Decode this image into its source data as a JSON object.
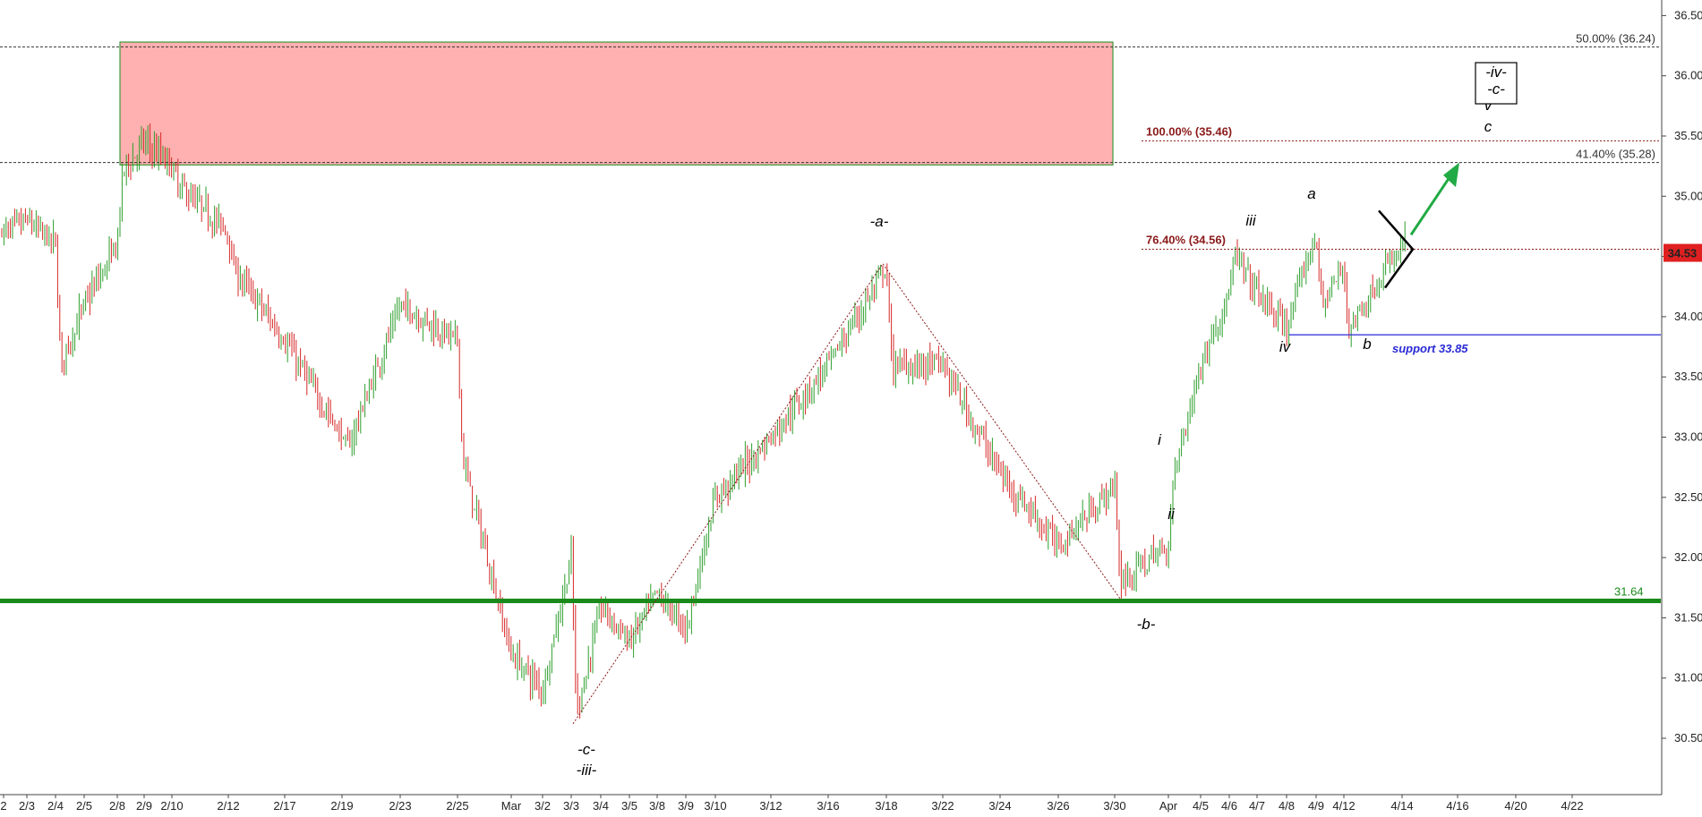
{
  "chart_data": {
    "type": "candlestick",
    "colors": {
      "up": "#2e9e2e",
      "down": "#d62828",
      "resistance_zone_fill": "#ffb0b0",
      "resistance_zone_border": "#3c9a3c",
      "support_line": "#1a8a1a",
      "support_33_85": "#2a2ad6",
      "fib_red": "#8b1a1a",
      "arrow": "#22aa44",
      "price_badge": "#e02020"
    },
    "ylim": [
      30.2,
      36.6
    ],
    "y_ticks": [
      "30.50",
      "31.00",
      "31.50",
      "32.00",
      "32.50",
      "33.00",
      "33.50",
      "34.00",
      "34.50",
      "35.00",
      "35.50",
      "36.00",
      "36.50"
    ],
    "x_ticks": [
      "2",
      "2/3",
      "2/4",
      "2/5",
      "2/8",
      "2/9",
      "2/10",
      "2/12",
      "2/17",
      "2/19",
      "2/23",
      "2/25",
      "Mar",
      "3/2",
      "3/3",
      "3/4",
      "3/5",
      "3/8",
      "3/9",
      "3/10",
      "3/12",
      "3/16",
      "3/18",
      "3/22",
      "3/24",
      "3/26",
      "3/30",
      "Apr",
      "4/5",
      "4/6",
      "4/7",
      "4/8",
      "4/9",
      "4/12",
      "4/14",
      "4/16",
      "4/20",
      "4/22"
    ],
    "price_path": [
      [
        "2",
        34.7
      ],
      [
        "2/3",
        34.8
      ],
      [
        "2/4",
        34.6
      ],
      [
        "2/4",
        33.6
      ],
      [
        "2/5",
        34.1
      ],
      [
        "2/8",
        34.6
      ],
      [
        "2/8",
        35.2
      ],
      [
        "2/9",
        35.45
      ],
      [
        "2/10",
        35.25
      ],
      [
        "2/10",
        35.1
      ],
      [
        "2/12",
        34.7
      ],
      [
        "2/12",
        34.4
      ],
      [
        "2/17",
        33.8
      ],
      [
        "2/19",
        33.0
      ],
      [
        "2/19",
        32.9
      ],
      [
        "2/23",
        34.1
      ],
      [
        "2/25",
        33.8
      ],
      [
        "2/25",
        32.8
      ],
      [
        "Mar",
        31.2
      ],
      [
        "3/2",
        30.9
      ],
      [
        "3/3",
        32.0
      ],
      [
        "3/3",
        30.7
      ],
      [
        "3/4",
        31.6
      ],
      [
        "3/5",
        31.3
      ],
      [
        "3/8",
        31.7
      ],
      [
        "3/9",
        31.4
      ],
      [
        "3/10",
        32.5
      ],
      [
        "3/12",
        33.0
      ],
      [
        "3/16",
        33.6
      ],
      [
        "3/18",
        34.4
      ],
      [
        "3/18",
        33.6
      ],
      [
        "3/22",
        33.6
      ],
      [
        "3/24",
        32.7
      ],
      [
        "3/26",
        32.1
      ],
      [
        "3/30",
        32.6
      ],
      [
        "3/30",
        31.8
      ],
      [
        "Apr",
        32.1
      ],
      [
        "Apr",
        32.7
      ],
      [
        "4/5",
        33.6
      ],
      [
        "4/6",
        34.2
      ],
      [
        "4/6",
        34.5
      ],
      [
        "4/7",
        34.2
      ],
      [
        "4/8",
        33.9
      ],
      [
        "4/9",
        34.7
      ],
      [
        "4/9",
        34.1
      ],
      [
        "4/12",
        34.4
      ],
      [
        "4/12",
        33.9
      ],
      [
        "4/14",
        34.6
      ]
    ],
    "resistance_zone": {
      "from": "2/8",
      "to": "3/30",
      "y_low": 35.26,
      "y_high": 36.28
    },
    "horizontal_lines": [
      {
        "y": 36.24,
        "style": "dashed",
        "label": "50.00% (36.24)"
      },
      {
        "y": 35.46,
        "style": "dotted",
        "label": "100.00% (35.46)"
      },
      {
        "y": 35.28,
        "style": "dashed",
        "label": "41.40% (35.28)"
      },
      {
        "y": 34.56,
        "style": "dotted",
        "label": "76.40% (34.56)"
      },
      {
        "y": 33.85,
        "style": "solid",
        "label": "support 33.85"
      },
      {
        "y": 31.64,
        "style": "thick",
        "label": "31.64"
      }
    ],
    "current_price": "34.53",
    "wave_labels": [
      "-a-",
      "-b-",
      "-c-",
      "-iii-",
      "i",
      "ii",
      "iii",
      "iv",
      "a",
      "b",
      "c",
      "v"
    ],
    "wave_box": [
      "-iv-",
      "-c-"
    ]
  }
}
